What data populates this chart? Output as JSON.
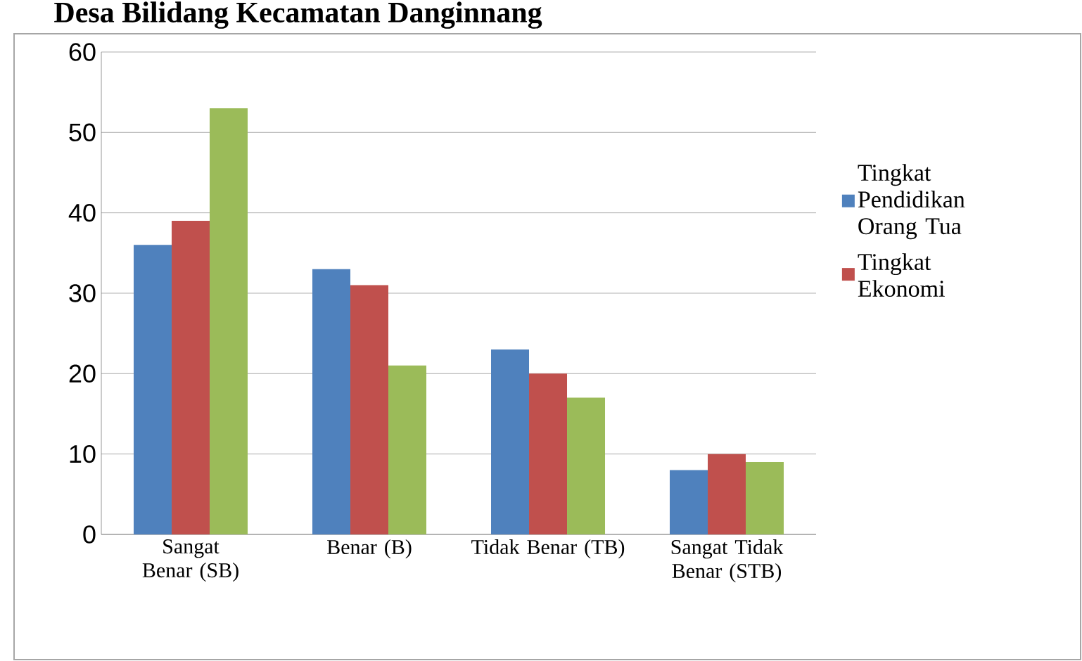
{
  "chart_data": {
    "type": "bar",
    "title": "Desa Bilidang Kecamatan Danginnang",
    "categories": [
      "Sangat Benar (SB)",
      "Benar (B)",
      "Tidak Benar (TB)",
      "Sangat Tidak Benar (STB)"
    ],
    "series": [
      {
        "name": "Tingkat Pendidikan Orang Tua",
        "color": "#4f81bd",
        "values": [
          36,
          33,
          23,
          8
        ]
      },
      {
        "name": "Tingkat Ekonomi",
        "color": "#c0504d",
        "values": [
          39,
          31,
          20,
          10
        ]
      },
      {
        "color": "#9bbb59",
        "values": [
          53,
          21,
          17,
          9
        ]
      }
    ],
    "ylim": [
      0,
      60
    ],
    "yticks": [
      0,
      10,
      20,
      30,
      40,
      50,
      60
    ],
    "grid": "y",
    "legend": "right"
  }
}
